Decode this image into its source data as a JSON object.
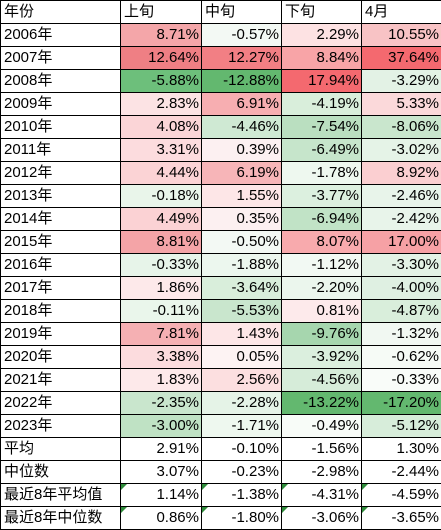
{
  "headers": [
    "年份",
    "上旬",
    "中旬",
    "下旬",
    "4月"
  ],
  "rows": [
    {
      "label": "2006年",
      "values": [
        "8.71%",
        "-0.57%",
        "2.29%",
        "10.55%"
      ],
      "colors": [
        "#f4a6a9",
        "#f3f9f4",
        "#fde2e3",
        "#f8c3c5"
      ]
    },
    {
      "label": "2007年",
      "values": [
        "12.64%",
        "12.27%",
        "8.84%",
        "37.64%"
      ],
      "colors": [
        "#ef7f84",
        "#f27f84",
        "#f8a4a7",
        "#f4696f"
      ]
    },
    {
      "label": "2008年",
      "values": [
        "-5.88%",
        "-12.88%",
        "17.94%",
        "-3.29%"
      ],
      "colors": [
        "#6dbf7b",
        "#63b86f",
        "#f4696f",
        "#e3f2e5"
      ]
    },
    {
      "label": "2009年",
      "values": [
        "2.83%",
        "6.91%",
        "-4.19%",
        "5.33%"
      ],
      "colors": [
        "#fce3e4",
        "#f7aeb1",
        "#d9eedb",
        "#fbd9da"
      ]
    },
    {
      "label": "2010年",
      "values": [
        "4.08%",
        "-4.46%",
        "-7.54%",
        "-8.06%"
      ],
      "colors": [
        "#fbd5d7",
        "#cfe9d3",
        "#badfc0",
        "#c9e6cd"
      ]
    },
    {
      "label": "2011年",
      "values": [
        "3.31%",
        "0.39%",
        "-6.49%",
        "-3.02%"
      ],
      "colors": [
        "#fcdcde",
        "#fcf0f1",
        "#c6e5cb",
        "#e5f3e7"
      ]
    },
    {
      "label": "2012年",
      "values": [
        "4.44%",
        "6.19%",
        "-1.78%",
        "8.92%"
      ],
      "colors": [
        "#fbd3d5",
        "#f7b5b8",
        "#eef8ef",
        "#fbcfd1"
      ]
    },
    {
      "label": "2013年",
      "values": [
        "-0.18%",
        "1.55%",
        "-3.77%",
        "-2.46%"
      ],
      "colors": [
        "#e9f5ea",
        "#fde6e7",
        "#dcf0df",
        "#e8f4ea"
      ]
    },
    {
      "label": "2014年",
      "values": [
        "4.49%",
        "0.35%",
        "-6.94%",
        "-2.42%"
      ],
      "colors": [
        "#fbd2d4",
        "#fcf0f1",
        "#c1e3c6",
        "#e8f4ea"
      ]
    },
    {
      "label": "2015年",
      "values": [
        "8.81%",
        "-0.50%",
        "8.07%",
        "17.00%"
      ],
      "colors": [
        "#f4a4a7",
        "#f3f9f4",
        "#f8aaad",
        "#f6a1a5"
      ]
    },
    {
      "label": "2016年",
      "values": [
        "-0.33%",
        "-1.88%",
        "-1.12%",
        "-3.30%"
      ],
      "colors": [
        "#e7f4e9",
        "#ecf7ee",
        "#f2f9f3",
        "#e3f2e5"
      ]
    },
    {
      "label": "2017年",
      "values": [
        "1.86%",
        "-3.64%",
        "-2.20%",
        "-4.00%"
      ],
      "colors": [
        "#fde9ea",
        "#d9eedb",
        "#ebf6ed",
        "#dff0e2"
      ]
    },
    {
      "label": "2018年",
      "values": [
        "-0.11%",
        "-5.53%",
        "0.81%",
        "-4.87%"
      ],
      "colors": [
        "#eaf6eb",
        "#c9e6cd",
        "#fdeaeb",
        "#d9eedb"
      ]
    },
    {
      "label": "2019年",
      "values": [
        "7.81%",
        "1.43%",
        "-9.76%",
        "-1.32%"
      ],
      "colors": [
        "#f5b0b3",
        "#fde6e7",
        "#a6d6ae",
        "#f1f8f2"
      ]
    },
    {
      "label": "2020年",
      "values": [
        "3.38%",
        "0.05%",
        "-3.92%",
        "-0.62%"
      ],
      "colors": [
        "#fcdcde",
        "#fdf3f3",
        "#dbefde",
        "#f6fbf6"
      ]
    },
    {
      "label": "2021年",
      "values": [
        "1.83%",
        "2.56%",
        "-4.56%",
        "-0.33%"
      ],
      "colors": [
        "#fde9ea",
        "#fcdfe0",
        "#d6ecd9",
        "#f9fcf9"
      ]
    },
    {
      "label": "2022年",
      "values": [
        "-2.35%",
        "-2.28%",
        "-13.22%",
        "-17.20%"
      ],
      "colors": [
        "#c9e6cd",
        "#e5f3e7",
        "#63b86f",
        "#63b86f"
      ]
    },
    {
      "label": "2023年",
      "values": [
        "-3.00%",
        "-1.71%",
        "-0.49%",
        "-5.12%"
      ],
      "colors": [
        "#bfe2c4",
        "#eef8ef",
        "#f8fcf8",
        "#d7edda"
      ]
    }
  ],
  "summary": [
    {
      "label": "平均",
      "values": [
        "2.91%",
        "-0.10%",
        "-1.56%",
        "1.30%"
      ]
    },
    {
      "label": "中位数",
      "values": [
        "3.07%",
        "-0.23%",
        "-2.98%",
        "-2.44%"
      ]
    },
    {
      "label": "最近8年平均值",
      "values": [
        "1.14%",
        "-1.38%",
        "-4.31%",
        "-4.59%"
      ]
    },
    {
      "label": "最近8年中位数",
      "values": [
        "0.86%",
        "-1.80%",
        "-3.06%",
        "-3.65%"
      ]
    }
  ]
}
